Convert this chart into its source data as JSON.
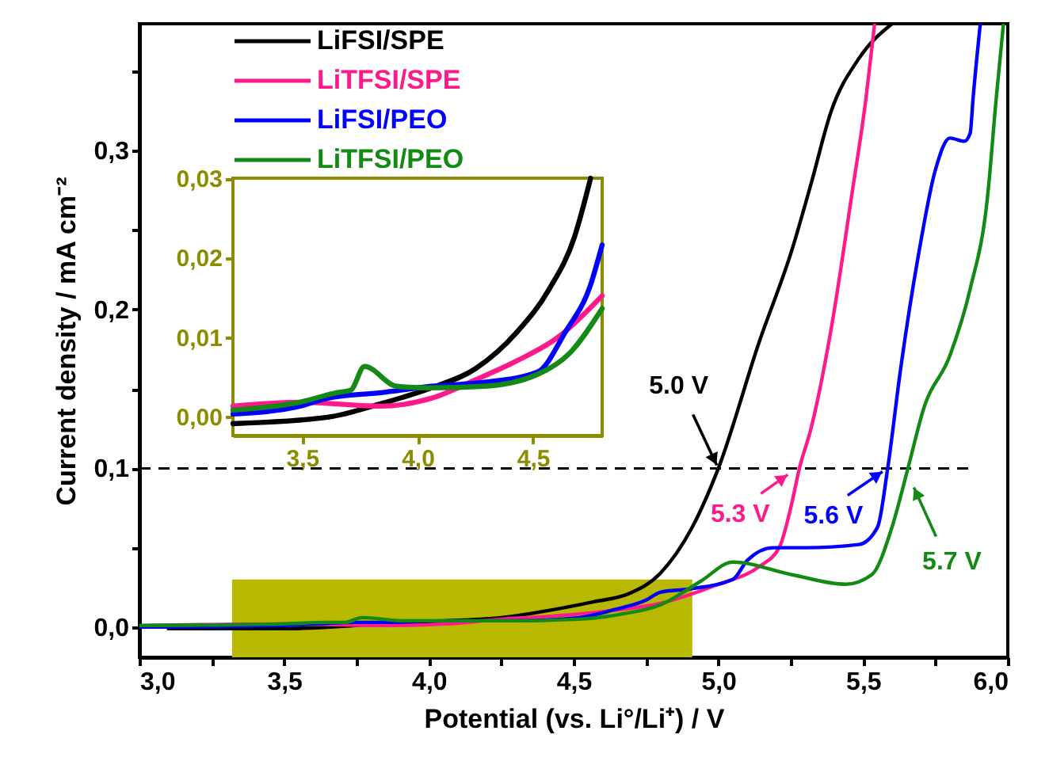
{
  "chart_data": [
    {
      "type": "line",
      "xlabel": "Potential (vs. Li°/Li⁺) / V",
      "ylabel": "Current density / mA cm⁻²",
      "xlim": [
        3.0,
        6.0
      ],
      "ylim": [
        -0.019,
        0.38
      ],
      "xticks": [
        {
          "value": 3.0,
          "label": "3,0"
        },
        {
          "value": 3.25,
          "label": null
        },
        {
          "value": 3.5,
          "label": "3,5"
        },
        {
          "value": 3.75,
          "label": null
        },
        {
          "value": 4.0,
          "label": "4,0"
        },
        {
          "value": 4.25,
          "label": null
        },
        {
          "value": 4.5,
          "label": "4,5"
        },
        {
          "value": 4.75,
          "label": null
        },
        {
          "value": 5.0,
          "label": "5,0"
        },
        {
          "value": 5.25,
          "label": null
        },
        {
          "value": 5.5,
          "label": "5,5"
        },
        {
          "value": 5.75,
          "label": null
        },
        {
          "value": 6.0,
          "label": "6,0"
        }
      ],
      "yticks": [
        {
          "value": 0.0,
          "label": "0,0"
        },
        {
          "value": 0.05,
          "label": null
        },
        {
          "value": 0.1,
          "label": "0,1"
        },
        {
          "value": 0.15,
          "label": null
        },
        {
          "value": 0.2,
          "label": "0,2"
        },
        {
          "value": 0.25,
          "label": null
        },
        {
          "value": 0.3,
          "label": "0,3"
        },
        {
          "value": 0.35,
          "label": null
        }
      ],
      "legend": "top left",
      "series": [
        {
          "name": "LiFSI/SPE",
          "color": "#000000",
          "x": [
            3.1,
            3.5,
            3.84,
            4.06,
            4.25,
            4.43,
            4.57,
            4.69,
            4.8,
            4.91,
            5.0,
            5.14,
            5.255,
            5.32,
            5.39,
            5.485,
            5.6
          ],
          "values": [
            -0.001,
            -0.001,
            0.002,
            0.004,
            0.006,
            0.011,
            0.016,
            0.021,
            0.034,
            0.063,
            0.1,
            0.179,
            0.238,
            0.279,
            0.325,
            0.358,
            0.38
          ]
        },
        {
          "name": "LiTFSI/SPE",
          "color": "#ff1a8c",
          "x": [
            3.0,
            3.49,
            3.84,
            4.06,
            4.25,
            4.43,
            4.61,
            4.8,
            5.0,
            5.14,
            5.21,
            5.25,
            5.28,
            5.32,
            5.39,
            5.46,
            5.51,
            5.54
          ],
          "values": [
            0.001,
            0.002,
            0.001,
            0.002,
            0.005,
            0.007,
            0.01,
            0.015,
            0.027,
            0.038,
            0.05,
            0.075,
            0.1,
            0.125,
            0.188,
            0.271,
            0.333,
            0.38
          ]
        },
        {
          "name": "LiFSI/PEO",
          "color": "#0000ff",
          "x": [
            3.0,
            3.49,
            3.61,
            3.75,
            3.84,
            4.06,
            4.29,
            4.52,
            4.64,
            4.75,
            4.8,
            4.9,
            5.05,
            5.1,
            5.19,
            5.3,
            5.485,
            5.55,
            5.585,
            5.63,
            5.69,
            5.75,
            5.8,
            5.85,
            5.87,
            5.88,
            5.905
          ],
          "values": [
            0.0,
            0.001,
            0.002,
            0.003,
            0.003,
            0.004,
            0.004,
            0.006,
            0.011,
            0.017,
            0.022,
            0.024,
            0.03,
            0.042,
            0.05,
            0.05,
            0.052,
            0.063,
            0.1,
            0.163,
            0.233,
            0.288,
            0.308,
            0.306,
            0.311,
            0.333,
            0.38
          ]
        },
        {
          "name": "LiTFSI/PEO",
          "color": "#138a13",
          "x": [
            3.0,
            3.49,
            3.65,
            3.71,
            3.77,
            3.91,
            4.06,
            4.29,
            4.52,
            4.66,
            4.8,
            4.94,
            5.05,
            5.255,
            5.44,
            5.53,
            5.6,
            5.655,
            5.71,
            5.8,
            5.87,
            5.93,
            5.96,
            5.985
          ],
          "values": [
            0.001,
            0.002,
            0.003,
            0.003,
            0.006,
            0.004,
            0.004,
            0.004,
            0.005,
            0.008,
            0.014,
            0.029,
            0.041,
            0.033,
            0.027,
            0.033,
            0.063,
            0.1,
            0.138,
            0.171,
            0.213,
            0.271,
            0.333,
            0.38
          ]
        }
      ],
      "ref_lines": [
        {
          "axis": "y",
          "value": 0.1,
          "color": "#000000",
          "line_style": "dashed"
        }
      ],
      "bands": [
        {
          "axis": "x",
          "from": 3.32,
          "to": 4.91,
          "color": "#b8b800"
        }
      ],
      "annotations": [
        {
          "text": "5.0 V",
          "x": 5.0,
          "y": 0.1
        },
        {
          "text": "5.3 V",
          "x": 5.3,
          "y": 0.1
        },
        {
          "text": "5.6 V",
          "x": 5.6,
          "y": 0.1
        },
        {
          "text": "5.7 V",
          "x": 5.67,
          "y": 0.09
        }
      ]
    },
    {
      "type": "line",
      "xlim": [
        3.2,
        4.8
      ],
      "ylim": [
        -0.0024,
        0.03
      ],
      "xticks": [
        {
          "value": 3.5,
          "label": "3,5"
        },
        {
          "value": 4.0,
          "label": "4,0"
        },
        {
          "value": 4.5,
          "label": "4,5"
        }
      ],
      "yticks": [
        {
          "value": 0.0,
          "label": "0,00"
        },
        {
          "value": 0.01,
          "label": "0,01"
        },
        {
          "value": 0.02,
          "label": "0,02"
        },
        {
          "value": 0.03,
          "label": "0,03"
        }
      ],
      "series": [
        {
          "color": "#000000",
          "x": [
            3.2,
            3.61,
            3.84,
            4.06,
            4.25,
            4.43,
            4.57,
            4.68,
            4.75
          ],
          "values": [
            -0.0009,
            -0.0001,
            0.0016,
            0.0036,
            0.006,
            0.0106,
            0.016,
            0.0226,
            0.03
          ]
        },
        {
          "color": "#ff1a8c",
          "x": [
            3.2,
            3.49,
            3.84,
            4.06,
            4.25,
            4.43,
            4.61,
            4.8
          ],
          "values": [
            0.0013,
            0.0018,
            0.0013,
            0.0023,
            0.0046,
            0.007,
            0.01,
            0.0152
          ]
        },
        {
          "color": "#0000ff",
          "x": [
            3.2,
            3.49,
            3.61,
            3.84,
            4.06,
            4.29,
            4.52,
            4.64,
            4.75,
            4.8
          ],
          "values": [
            0.0003,
            0.0013,
            0.0023,
            0.003,
            0.0038,
            0.0043,
            0.0056,
            0.0106,
            0.0166,
            0.0216
          ]
        },
        {
          "color": "#138a13",
          "x": [
            3.2,
            3.49,
            3.65,
            3.71,
            3.77,
            3.91,
            4.06,
            4.29,
            4.52,
            4.66,
            4.8
          ],
          "values": [
            0.0008,
            0.0018,
            0.003,
            0.0033,
            0.0063,
            0.0038,
            0.0036,
            0.0038,
            0.0053,
            0.008,
            0.0136
          ]
        }
      ]
    }
  ]
}
